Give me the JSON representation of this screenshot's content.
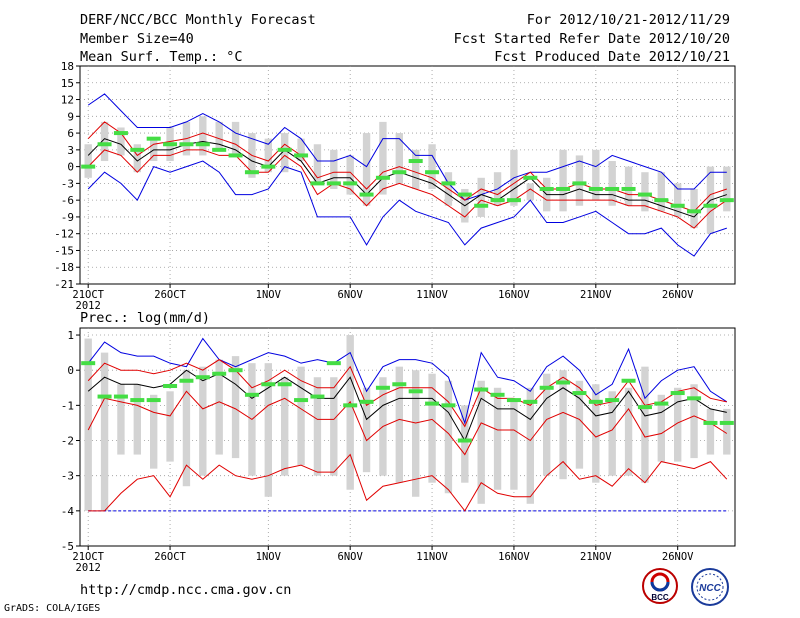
{
  "header": {
    "title": "DERF/NCC/BCC Monthly Forecast",
    "member_size": "Member Size=40",
    "variable": "Mean Surf. Temp.: °C",
    "period": "For 2012/10/21-2012/11/29",
    "started": "Fcst Started Refer Date 2012/10/20",
    "produced": "Fcst Produced Date 2012/10/21"
  },
  "footer": {
    "url": "http://cmdp.ncc.cma.gov.cn",
    "grads": "GrADS: COLA/IGES",
    "logo_bcc": "BCC",
    "logo_ncc": "NCC"
  },
  "colors": {
    "box": "#d3d3d3",
    "mean": "#000000",
    "spread": "#e00000",
    "extreme": "#0000e0",
    "obs": "#44dd44",
    "grid": "#999999"
  },
  "chart_data": [
    {
      "type": "box-ensemble",
      "title": "Mean Surf. Temp.: °C",
      "ylabel": "Mean Surf. Temp.: °C",
      "ylim": [
        -21,
        18
      ],
      "yticks": [
        -21,
        -18,
        -15,
        -12,
        -9,
        -6,
        -3,
        0,
        3,
        6,
        9,
        12,
        15,
        18
      ],
      "xlim": [
        0.5,
        40.5
      ],
      "xticks": [
        {
          "x": 1,
          "label": "21OCT"
        },
        {
          "x": 6,
          "label": "26OCT"
        },
        {
          "x": 12,
          "label": "1NOV"
        },
        {
          "x": 17,
          "label": "6NOV"
        },
        {
          "x": 22,
          "label": "11NOV"
        },
        {
          "x": 27,
          "label": "16NOV"
        },
        {
          "x": 32,
          "label": "21NOV"
        },
        {
          "x": 37,
          "label": "26NOV"
        }
      ],
      "xsub": "2012",
      "box_low": [
        -2,
        1,
        2,
        -1,
        1,
        1,
        2,
        2,
        3,
        2,
        -2,
        -1,
        -1,
        1,
        -3,
        -4,
        -5,
        -7,
        -5,
        -3,
        -4,
        -4,
        -7,
        -10,
        -9,
        -7,
        -7,
        -6,
        -8,
        -8,
        -7,
        -6,
        -7,
        -7,
        -8,
        -8,
        -9,
        -11,
        -12,
        -8
      ],
      "box_high": [
        4,
        8,
        7,
        4,
        5,
        7,
        8,
        9,
        8,
        8,
        6,
        5,
        6,
        5,
        4,
        3,
        2,
        6,
        8,
        6,
        3,
        4,
        -1,
        -4,
        -2,
        -1,
        3,
        -3,
        -2,
        3,
        2,
        3,
        1,
        0,
        -1,
        -1,
        -3,
        -4,
        0,
        0
      ],
      "mean": [
        2,
        5,
        4,
        1,
        3,
        3,
        4,
        4.5,
        4,
        3,
        1,
        0,
        3,
        1,
        -3,
        -2,
        -2,
        -5,
        -2,
        -1,
        -2,
        -3,
        -5,
        -7,
        -5,
        -6,
        -4,
        -2,
        -5,
        -5,
        -4,
        -5,
        -5,
        -6,
        -6,
        -7,
        -8,
        -9,
        -6,
        -5
      ],
      "upper": [
        5,
        8,
        6,
        2,
        4,
        4.5,
        5,
        6,
        5,
        4,
        2,
        1,
        4,
        2,
        -2,
        -1,
        -1,
        -4,
        -1,
        0,
        -1,
        -2,
        -4,
        -6,
        -4,
        -5,
        -3,
        -1,
        -4,
        -4,
        -3,
        -4,
        -4,
        -5,
        -5,
        -6,
        -7,
        -8,
        -5,
        -4
      ],
      "lower": [
        0,
        3,
        2,
        -1,
        2,
        2,
        3,
        3,
        2,
        2,
        -1,
        -1,
        2,
        0,
        -5,
        -3,
        -4,
        -7,
        -4,
        -3,
        -4,
        -5,
        -7,
        -9,
        -6,
        -7,
        -6,
        -4,
        -6,
        -6,
        -6,
        -6,
        -6,
        -7,
        -7,
        -8,
        -9,
        -11,
        -8,
        -6
      ],
      "max": [
        11,
        13,
        10,
        7,
        7,
        7,
        8,
        9.5,
        8,
        6,
        5,
        4,
        7,
        5,
        1,
        1,
        2,
        0,
        5,
        5,
        2,
        2,
        -3,
        -6,
        -5,
        -4,
        -2,
        -1,
        -1,
        0,
        1,
        0,
        2,
        1,
        0,
        -1,
        -4,
        -4,
        -1,
        -1
      ],
      "min": [
        -4,
        -1,
        -3,
        -6,
        0,
        -1,
        0,
        1,
        -1,
        -5,
        -5,
        -4,
        0,
        -1,
        -9,
        -9,
        -9,
        -14,
        -9,
        -6,
        -8,
        -9,
        -10,
        -14,
        -11,
        -10,
        -9,
        -6,
        -10,
        -10,
        -9,
        -8,
        -10,
        -12,
        -12,
        -11,
        -14,
        -16,
        -12,
        -11
      ],
      "obs": [
        0,
        4,
        6,
        3,
        5,
        4,
        4,
        4,
        3,
        2,
        -1,
        0,
        3,
        2,
        -3,
        -3,
        -3,
        -5,
        -2,
        -1,
        1,
        -1,
        -3,
        -5,
        -7,
        -6,
        -6,
        -2,
        -4,
        -4,
        -3,
        -4,
        -4,
        -4,
        -5,
        -6,
        -7,
        -8,
        -7,
        -6
      ]
    },
    {
      "type": "box-ensemble",
      "title": "Prec.: log(mm/d)",
      "ylabel": "Prec.: log(mm/d)",
      "ylim": [
        -5,
        1.2
      ],
      "yticks": [
        -5,
        -4,
        -3,
        -2,
        -1,
        0,
        1
      ],
      "xlim": [
        0.5,
        40.5
      ],
      "xticks": [
        {
          "x": 1,
          "label": "21OCT"
        },
        {
          "x": 6,
          "label": "26OCT"
        },
        {
          "x": 12,
          "label": "1NOV"
        },
        {
          "x": 17,
          "label": "6NOV"
        },
        {
          "x": 22,
          "label": "11NOV"
        },
        {
          "x": 27,
          "label": "16NOV"
        },
        {
          "x": 32,
          "label": "21NOV"
        },
        {
          "x": 37,
          "label": "26NOV"
        }
      ],
      "xsub": "2012",
      "box_low": [
        -4,
        -4,
        -2.4,
        -2.4,
        -2.8,
        -2.6,
        -3.3,
        -3,
        -2.4,
        -2.5,
        -3,
        -3.6,
        -3,
        -2.7,
        -3,
        -3,
        -3.4,
        -2.9,
        -3,
        -3.2,
        -3.6,
        -3.2,
        -3.5,
        -3.2,
        -3.8,
        -3.4,
        -3.4,
        -3.8,
        -3,
        -3.1,
        -2.8,
        -3.2,
        -3,
        -3,
        -3.2,
        -2.6,
        -2.6,
        -2.5,
        -2.4,
        -2.4
      ],
      "box_high": [
        0.9,
        0.5,
        -0.4,
        -0.4,
        -0.7,
        -0.6,
        0,
        0.1,
        0.3,
        0.4,
        0.2,
        0.2,
        -0.2,
        0.1,
        -0.2,
        -0.2,
        1,
        -0.5,
        -0.2,
        0.1,
        0,
        -0.1,
        -0.3,
        -1,
        -0.3,
        -0.5,
        -0.9,
        -0.5,
        -0.1,
        0,
        -0.3,
        -0.4,
        -0.6,
        -0.5,
        0.1,
        -0.7,
        -0.5,
        -0.4,
        -1.1,
        -1.1
      ],
      "mean": [
        -0.6,
        -0.2,
        -0.4,
        -0.4,
        -0.5,
        -0.4,
        0,
        -0.3,
        -0.1,
        -0.4,
        -0.8,
        -0.5,
        -0.2,
        -0.5,
        -0.8,
        -0.8,
        -0.2,
        -1.4,
        -1,
        -0.8,
        -0.8,
        -0.8,
        -1.2,
        -2,
        -0.8,
        -1.1,
        -1.1,
        -1.4,
        -0.8,
        -0.5,
        -0.8,
        -1.3,
        -1.2,
        -0.6,
        -1.3,
        -1.2,
        -0.9,
        -0.8,
        -1.1,
        -1.2
      ],
      "upper": [
        -0.3,
        0.2,
        0,
        0,
        -0.1,
        0,
        0.2,
        0,
        0.3,
        0,
        -0.5,
        -0.3,
        0,
        -0.3,
        -0.5,
        -0.5,
        0.1,
        -1,
        -0.7,
        -0.5,
        -0.5,
        -0.5,
        -0.9,
        -1.6,
        -0.5,
        -0.8,
        -0.8,
        -1,
        -0.5,
        -0.2,
        -0.5,
        -1,
        -0.9,
        -0.3,
        -1,
        -0.9,
        -0.6,
        -0.5,
        -0.8,
        -0.9
      ],
      "lower": [
        -1.7,
        -0.8,
        -0.9,
        -1,
        -1.2,
        -1.3,
        -0.6,
        -1.1,
        -0.9,
        -1.1,
        -1.4,
        -1,
        -0.8,
        -1.1,
        -1.4,
        -1.4,
        -0.9,
        -2,
        -1.6,
        -1.4,
        -1.5,
        -1.4,
        -1.8,
        -2.4,
        -1.5,
        -1.7,
        -1.7,
        -2,
        -1.4,
        -1.2,
        -1.4,
        -1.9,
        -1.7,
        -1.1,
        -1.9,
        -1.8,
        -1.5,
        -1.3,
        -1.5,
        -1.8
      ],
      "min": [
        -4,
        -4,
        -3.5,
        -3.1,
        -3,
        -3.6,
        -2.7,
        -3.1,
        -2.7,
        -3,
        -3.1,
        -3,
        -2.8,
        -2.7,
        -2.9,
        -2.9,
        -2.4,
        -3.7,
        -3.3,
        -3.2,
        -3.1,
        -3,
        -3.4,
        -4,
        -3.2,
        -3.5,
        -3.6,
        -3.6,
        -3,
        -2.6,
        -3.1,
        -3,
        -3.3,
        -2.8,
        -3.2,
        -2.6,
        -2.7,
        -2.8,
        -2.6,
        -3.1
      ],
      "max": [
        0.2,
        0.8,
        0.5,
        0.4,
        0.4,
        0.2,
        0.1,
        0.9,
        0.3,
        0.1,
        0.3,
        0.5,
        0.4,
        0.2,
        0.3,
        0.2,
        0.5,
        -0.6,
        0.1,
        0.3,
        0.3,
        0.2,
        -0.2,
        -1.5,
        0.5,
        -0.2,
        -0.3,
        -0.6,
        0.1,
        0.4,
        0,
        -0.7,
        -0.4,
        0.6,
        -0.8,
        -0.3,
        0,
        0.1,
        -0.6,
        -0.9
      ],
      "floor": -4,
      "obs": [
        0.2,
        -0.75,
        -0.75,
        -0.85,
        -0.85,
        -0.45,
        -0.3,
        -0.2,
        -0.1,
        0,
        -0.7,
        -0.4,
        -0.4,
        -0.85,
        -0.75,
        0.2,
        -1.0,
        -0.9,
        -0.5,
        -0.4,
        -0.6,
        -0.95,
        -1.0,
        -2.0,
        -0.55,
        -0.7,
        -0.85,
        -0.9,
        -0.5,
        -0.35,
        -0.65,
        -0.9,
        -0.85,
        -0.3,
        -1.05,
        -0.95,
        -0.65,
        -0.8,
        -1.5,
        -1.5
      ]
    }
  ]
}
